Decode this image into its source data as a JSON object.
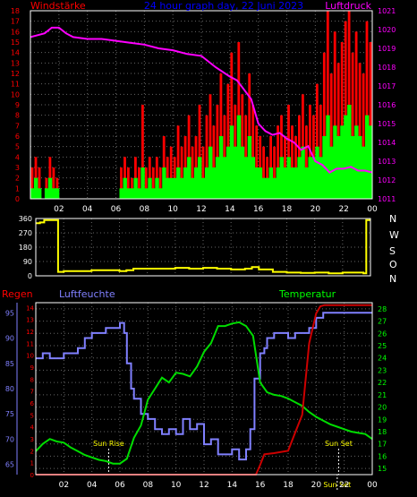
{
  "chart_data": [
    {
      "type": "bar",
      "title": "24 hour graph day, 22 Juni 2023",
      "left_label": "Windstärke",
      "right_label": "Luftdruck",
      "x_ticks": [
        "02",
        "04",
        "06",
        "08",
        "10",
        "12",
        "14",
        "16",
        "18",
        "20",
        "22",
        "00"
      ],
      "y_left_ticks": [
        "0",
        "1",
        "2",
        "3",
        "4",
        "5",
        "6",
        "7",
        "8",
        "9",
        "10",
        "11",
        "12",
        "13",
        "14",
        "15",
        "16",
        "17",
        "18"
      ],
      "y_right_ticks": [
        "1011",
        "1012",
        "1013",
        "1014",
        "1015",
        "1016",
        "1017",
        "1018",
        "1019",
        "1020",
        "1021"
      ],
      "ylim_left": [
        0,
        18
      ],
      "ylim_right": [
        1011,
        1021
      ],
      "xlim": [
        0,
        24
      ],
      "colors": {
        "gust": "#ff0000",
        "wind": "#00ff00",
        "pressure": "#ff00ff",
        "grid": "#666666",
        "axis_left": "#ff0000",
        "axis_right": "#ff00ff"
      },
      "series": [
        {
          "name": "Luftdruck",
          "x": [
            0,
            0.5,
            1,
            1.5,
            2,
            2.5,
            3,
            4,
            5,
            6,
            7,
            8,
            9,
            10,
            11,
            12,
            13,
            14,
            14.5,
            15,
            15.5,
            16,
            16.5,
            17,
            17.5,
            18,
            18.5,
            19,
            19.5,
            20,
            20.5,
            21,
            21.5,
            22,
            22.5,
            23,
            23.5,
            24
          ],
          "y": [
            1019.6,
            1019.7,
            1019.8,
            1020.1,
            1020.1,
            1019.8,
            1019.6,
            1019.5,
            1019.5,
            1019.4,
            1019.3,
            1019.2,
            1019.0,
            1018.9,
            1018.7,
            1018.6,
            1018.0,
            1017.5,
            1017.3,
            1016.8,
            1016.3,
            1015.0,
            1014.6,
            1014.4,
            1014.5,
            1014.2,
            1014.0,
            1013.6,
            1013.8,
            1013.0,
            1012.8,
            1012.4,
            1012.6,
            1012.6,
            1012.7,
            1012.5,
            1012.5,
            1012.4
          ]
        },
        {
          "name": "Windböen",
          "x": [
            0,
            0.25,
            0.5,
            0.75,
            1,
            1.25,
            1.5,
            1.75,
            2,
            2.25,
            2.5,
            2.75,
            3,
            3.25,
            3.5,
            3.75,
            4,
            4.25,
            4.5,
            4.75,
            5,
            5.25,
            5.5,
            5.75,
            6,
            6.25,
            6.5,
            6.75,
            7,
            7.25,
            7.5,
            7.75,
            8,
            8.25,
            8.5,
            8.75,
            9,
            9.25,
            9.5,
            9.75,
            10,
            10.25,
            10.5,
            10.75,
            11,
            11.25,
            11.5,
            11.75,
            12,
            12.25,
            12.5,
            12.75,
            13,
            13.25,
            13.5,
            13.75,
            14,
            14.25,
            14.5,
            14.75,
            15,
            15.25,
            15.5,
            15.75,
            16,
            16.25,
            16.5,
            16.75,
            17,
            17.25,
            17.5,
            17.75,
            18,
            18.25,
            18.5,
            18.75,
            19,
            19.25,
            19.5,
            19.75,
            20,
            20.25,
            20.5,
            20.75,
            21,
            21.25,
            21.5,
            21.75,
            22,
            22.25,
            22.5,
            22.75,
            23,
            23.25,
            23.5,
            23.75
          ],
          "y": [
            3,
            4,
            3,
            0,
            2,
            4,
            3,
            2,
            0,
            0,
            0,
            0,
            0,
            0,
            0,
            0,
            0,
            0,
            0,
            0,
            0,
            0,
            0,
            0,
            0,
            3,
            4,
            3,
            2,
            4,
            3,
            9,
            3,
            4,
            3,
            4,
            3,
            6,
            4,
            5,
            4,
            7,
            5,
            6,
            8,
            5,
            6,
            9,
            5,
            8,
            10,
            7,
            9,
            12,
            8,
            11,
            14,
            9,
            15,
            10,
            8,
            12,
            9,
            7,
            6,
            5,
            4,
            6,
            5,
            7,
            8,
            6,
            9,
            7,
            6,
            8,
            10,
            7,
            9,
            8,
            11,
            9,
            14,
            18,
            12,
            16,
            13,
            15,
            17,
            18,
            14,
            16,
            13,
            12,
            17,
            15
          ]
        },
        {
          "name": "Windstärke",
          "x": [
            0,
            0.25,
            0.5,
            0.75,
            1,
            1.25,
            1.5,
            1.75,
            2,
            2.25,
            2.5,
            2.75,
            3,
            3.25,
            3.5,
            3.75,
            4,
            4.25,
            4.5,
            4.75,
            5,
            5.25,
            5.5,
            5.75,
            6,
            6.25,
            6.5,
            6.75,
            7,
            7.25,
            7.5,
            7.75,
            8,
            8.25,
            8.5,
            8.75,
            9,
            9.25,
            9.5,
            9.75,
            10,
            10.25,
            10.5,
            10.75,
            11,
            11.25,
            11.5,
            11.75,
            12,
            12.25,
            12.5,
            12.75,
            13,
            13.25,
            13.5,
            13.75,
            14,
            14.25,
            14.5,
            14.75,
            15,
            15.25,
            15.5,
            15.75,
            16,
            16.25,
            16.5,
            16.75,
            17,
            17.25,
            17.5,
            17.75,
            18,
            18.25,
            18.5,
            18.75,
            19,
            19.25,
            19.5,
            19.75,
            20,
            20.25,
            20.5,
            20.75,
            21,
            21.25,
            21.5,
            21.75,
            22,
            22.25,
            22.5,
            22.75,
            23,
            23.25,
            23.5,
            23.75
          ],
          "y": [
            1,
            2,
            1,
            0,
            1,
            2,
            1,
            1,
            0,
            0,
            0,
            0,
            0,
            0,
            0,
            0,
            0,
            0,
            0,
            0,
            0,
            0,
            0,
            0,
            0,
            1,
            2,
            1,
            1,
            2,
            1,
            3,
            1,
            2,
            1,
            2,
            1,
            3,
            2,
            2,
            2,
            3,
            2,
            3,
            4,
            2,
            3,
            4,
            2,
            3,
            5,
            3,
            4,
            6,
            4,
            5,
            7,
            5,
            8,
            5,
            4,
            6,
            4,
            3,
            3,
            2,
            2,
            3,
            2,
            3,
            4,
            3,
            4,
            3,
            3,
            4,
            5,
            3,
            4,
            4,
            5,
            4,
            6,
            8,
            5,
            7,
            6,
            7,
            8,
            9,
            6,
            7,
            6,
            5,
            8,
            7
          ]
        }
      ]
    },
    {
      "type": "line",
      "title": "",
      "y_ticks": [
        "0",
        "90",
        "180",
        "270",
        "360"
      ],
      "right_labels": [
        "N",
        "W",
        "S",
        "O",
        "N"
      ],
      "ylim": [
        0,
        360
      ],
      "xlim": [
        0,
        24
      ],
      "colors": {
        "line": "#ffff00",
        "grid": "#666666",
        "axis": "#ffffff",
        "compass": "#ffffff"
      },
      "series": [
        {
          "name": "Windrichtung",
          "x": [
            0,
            0.3,
            0.6,
            1.5,
            1.6,
            2,
            3,
            4,
            5,
            6,
            6.5,
            7,
            8,
            9,
            10,
            11,
            12,
            13,
            14,
            15,
            15.5,
            16,
            17,
            18,
            19,
            20,
            21,
            22,
            23,
            23.5,
            23.7,
            24
          ],
          "y": [
            330,
            335,
            350,
            350,
            25,
            30,
            30,
            35,
            35,
            30,
            35,
            45,
            45,
            45,
            50,
            45,
            50,
            45,
            40,
            45,
            55,
            40,
            25,
            20,
            18,
            20,
            15,
            20,
            20,
            15,
            350,
            350
          ]
        }
      ]
    },
    {
      "type": "line",
      "title": "",
      "left_outer_label": "Regen",
      "left_inner_label": "Luftfeuchte",
      "right_label": "Temperatur",
      "x_ticks": [
        "02",
        "04",
        "06",
        "08",
        "10",
        "12",
        "14",
        "16",
        "18",
        "20",
        "22",
        "00"
      ],
      "y_rain_ticks": [
        "0",
        "1",
        "2",
        "3",
        "4",
        "5",
        "6",
        "7",
        "8",
        "9",
        "10",
        "11",
        "12",
        "13",
        "14"
      ],
      "y_humidity_ticks": [
        "65",
        "70",
        "75",
        "80",
        "85",
        "90",
        "95"
      ],
      "y_temp_ticks": [
        "15",
        "16",
        "17",
        "18",
        "19",
        "20",
        "21",
        "22",
        "23",
        "24",
        "25",
        "26",
        "27",
        "28"
      ],
      "ylim_rain": [
        0,
        14.4
      ],
      "ylim_humidity": [
        63,
        97
      ],
      "ylim_temp": [
        14.5,
        28.5
      ],
      "xlim": [
        0,
        24
      ],
      "annotations": [
        {
          "text": "Sun Rise",
          "x": 5.2
        },
        {
          "text": "Sun Set",
          "x": 21.6
        },
        {
          "text": "Sun Set",
          "x": 21.5
        }
      ],
      "colors": {
        "rain": "#cc0000",
        "humidity": "#8080ff",
        "temperature": "#00dd00",
        "grid": "#666666",
        "axis_rain": "#ff0000",
        "axis_humidity": "#8080ff",
        "axis_temp": "#00ff00"
      },
      "series": [
        {
          "name": "Luftfeuchte",
          "x": [
            0,
            0.5,
            1,
            1.5,
            2,
            2.5,
            3,
            3.5,
            4,
            4.5,
            5,
            5.5,
            6,
            6.3,
            6.5,
            6.8,
            7,
            7.5,
            8,
            8.5,
            9,
            9.5,
            10,
            10.5,
            11,
            11.5,
            12,
            12.5,
            13,
            13.5,
            14,
            14.5,
            15,
            15.3,
            15.6,
            16,
            16.3,
            16.5,
            17,
            17.5,
            18,
            18.5,
            19,
            19.5,
            20,
            20.5,
            21,
            21.5,
            22,
            22.5,
            23,
            23.5,
            24
          ],
          "y": [
            86,
            87,
            86,
            86,
            87,
            87,
            88,
            90,
            91,
            91,
            92,
            92,
            93,
            91,
            85,
            80,
            78,
            75,
            74,
            72,
            71,
            72,
            71,
            74,
            72,
            73,
            69,
            70,
            67,
            67,
            68,
            66,
            68,
            72,
            82,
            87,
            88,
            90,
            91,
            91,
            90,
            91,
            91,
            92,
            94,
            95,
            95,
            95,
            95,
            95,
            95,
            95,
            95
          ]
        },
        {
          "name": "Temperatur",
          "x": [
            0,
            0.5,
            1,
            1.5,
            2,
            2.5,
            3,
            3.5,
            4,
            4.5,
            5,
            5.5,
            6,
            6.5,
            7,
            7.5,
            8,
            8.5,
            9,
            9.5,
            10,
            10.5,
            11,
            11.5,
            12,
            12.5,
            13,
            13.5,
            14,
            14.5,
            15,
            15.5,
            16,
            16.5,
            17,
            17.5,
            18,
            18.5,
            19,
            19.5,
            20,
            20.5,
            21,
            21.5,
            22,
            22.5,
            23,
            23.5,
            24
          ],
          "y": [
            16.4,
            17,
            17.4,
            17.2,
            17.1,
            16.7,
            16.4,
            16.1,
            15.9,
            15.7,
            15.6,
            15.4,
            15.4,
            15.8,
            17.5,
            18.5,
            20.6,
            21.5,
            22.4,
            22,
            22.8,
            22.7,
            22.5,
            23.3,
            24.5,
            25.2,
            26.6,
            26.6,
            26.8,
            26.9,
            26.6,
            25.8,
            22,
            21.2,
            21.0,
            20.9,
            20.7,
            20.4,
            20.1,
            19.6,
            19.2,
            18.9,
            18.6,
            18.4,
            18.2,
            18.0,
            17.9,
            17.8,
            17.4
          ]
        },
        {
          "name": "Regen",
          "x": [
            0,
            1,
            2,
            3,
            4,
            5,
            6,
            7,
            8,
            9,
            10,
            11,
            12,
            13,
            14,
            15,
            15.7,
            16,
            16.3,
            17,
            18,
            18.5,
            19,
            19.5,
            20,
            20.3,
            20.6,
            21,
            21.5,
            22,
            23,
            24
          ],
          "y": [
            0,
            0,
            0,
            0,
            0,
            0,
            0,
            0,
            0,
            0,
            0,
            0,
            0,
            0,
            0,
            0,
            0,
            0.8,
            1.7,
            1.8,
            2.0,
            3.5,
            5.0,
            11.0,
            13.5,
            14.1,
            14.2,
            14.2,
            14.2,
            14.2,
            14.2,
            14.2
          ]
        }
      ]
    }
  ]
}
